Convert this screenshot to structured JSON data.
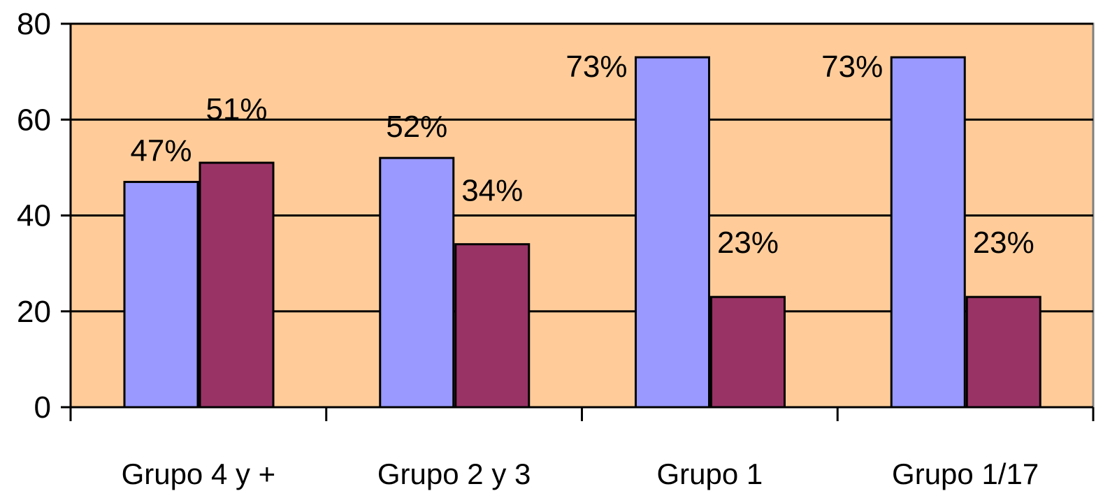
{
  "chart_data": {
    "type": "bar",
    "categories": [
      "Grupo 4 y +",
      "Grupo 2 y 3",
      "Grupo 1",
      "Grupo 1/17"
    ],
    "series": [
      {
        "values": [
          47,
          52,
          73,
          73
        ],
        "labels": [
          "47%",
          "52%",
          "73%",
          "73%"
        ],
        "color": "#9999ff"
      },
      {
        "values": [
          51,
          34,
          23,
          23
        ],
        "labels": [
          "51%",
          "34%",
          "23%",
          "23%"
        ],
        "color": "#993366"
      }
    ],
    "ylim": [
      0,
      80
    ],
    "yticks": [
      "0",
      "20",
      "40",
      "60",
      "80"
    ],
    "grid": true,
    "legend": "none",
    "plot_background": "#ffcc99",
    "title": "",
    "xlabel": "",
    "ylabel": ""
  }
}
